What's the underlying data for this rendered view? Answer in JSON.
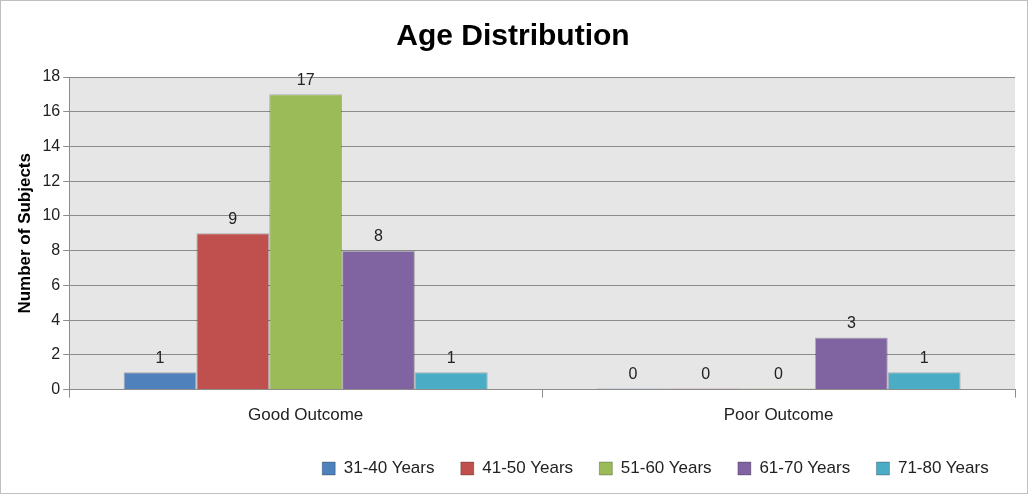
{
  "chart_data": {
    "type": "bar",
    "title": "Age Distribution",
    "ylabel": "Number of Subjects",
    "categories": [
      "Good Outcome",
      "Poor Outcome"
    ],
    "series": [
      {
        "name": "31-40 Years",
        "color": "#4f81bd",
        "values": [
          1,
          0
        ]
      },
      {
        "name": "41-50 Years",
        "color": "#c0504d",
        "values": [
          9,
          0
        ]
      },
      {
        "name": "51-60 Years",
        "color": "#9bbb59",
        "values": [
          17,
          0
        ]
      },
      {
        "name": "61-70 Years",
        "color": "#8064a2",
        "values": [
          8,
          3
        ]
      },
      {
        "name": "71-80 Years",
        "color": "#4bacc6",
        "values": [
          1,
          1
        ]
      }
    ],
    "ylim": [
      0,
      18
    ],
    "yticks": [
      0,
      2,
      4,
      6,
      8,
      10,
      12,
      14,
      16,
      18
    ],
    "grid": "y",
    "legend": "bottom",
    "data_labels": true
  }
}
